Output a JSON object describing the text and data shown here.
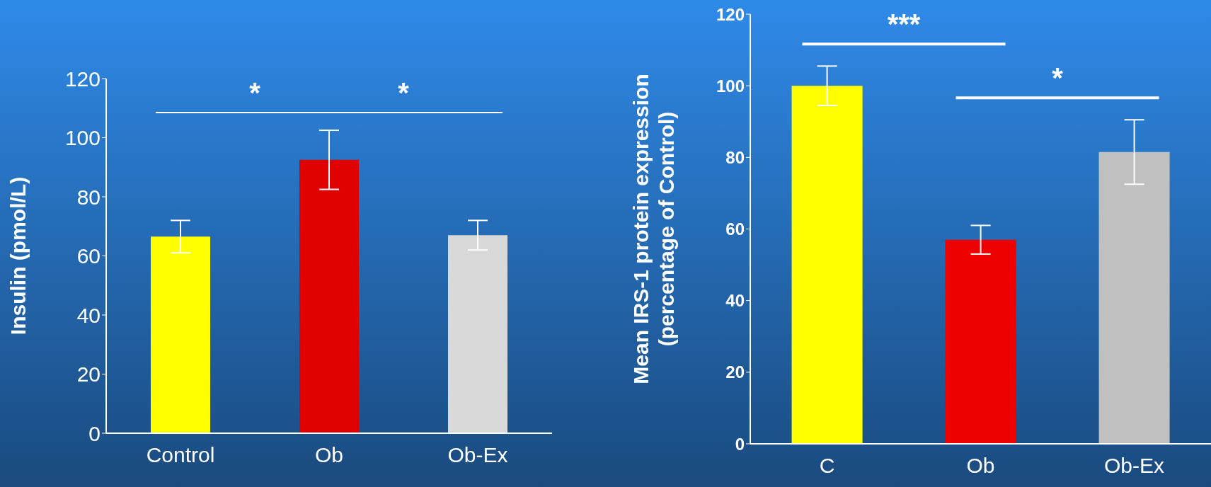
{
  "chart_data": [
    {
      "type": "bar",
      "ylabel": "Insulin (pmol/L)",
      "categories": [
        "Control",
        "Ob",
        "Ob-Ex"
      ],
      "values": [
        66.5,
        92.5,
        67
      ],
      "errors": [
        5.5,
        10,
        5
      ],
      "colors": [
        "#ffff00",
        "#e00000",
        "#d9d9d9"
      ],
      "ylim": [
        0,
        120
      ],
      "yticks": [
        0,
        20,
        40,
        60,
        80,
        100,
        120
      ],
      "annotations": [
        "*",
        "*"
      ]
    },
    {
      "type": "bar",
      "ylabel": "Mean IRS-1 protein expression\n(percentage of Control)",
      "categories": [
        "C",
        "Ob",
        "Ob-Ex"
      ],
      "values": [
        100,
        57,
        81.5
      ],
      "errors": [
        5.5,
        4,
        9
      ],
      "colors": [
        "#ffff00",
        "#ee0000",
        "#c0c0c0"
      ],
      "ylim": [
        0,
        120
      ],
      "yticks": [
        0,
        20,
        40,
        60,
        80,
        100,
        120
      ],
      "annotations": [
        "***",
        "*"
      ]
    }
  ]
}
